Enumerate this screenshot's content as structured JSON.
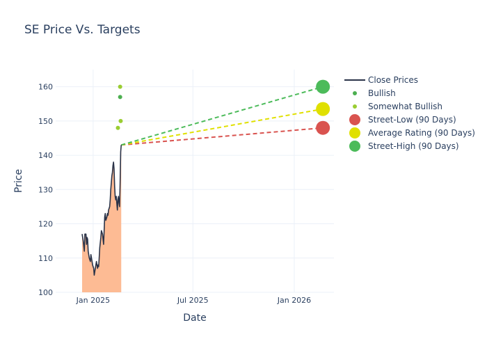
{
  "chart_data": {
    "type": "line",
    "title": "SE Price Vs. Targets",
    "xlabel": "Date",
    "ylabel": "Price",
    "ylim": [
      100,
      165
    ],
    "xlim": [
      "2024-10-25",
      "2026-03-14"
    ],
    "y_ticks": [
      100,
      110,
      120,
      130,
      140,
      150,
      160
    ],
    "x_ticks": [
      {
        "date": "2025-01-01",
        "label": "Jan 2025"
      },
      {
        "date": "2025-07-01",
        "label": "Jul 2025"
      },
      {
        "date": "2026-01-01",
        "label": "Jan 2026"
      }
    ],
    "grid": true,
    "legend_position": "right",
    "colors": {
      "close": "#2a3348",
      "area": "#fdbb94",
      "bullish": "#4caf50",
      "somewhat_bullish": "#9acd32",
      "street_low": "#d9534f",
      "average": "#e0e000",
      "street_high": "#4cbb5a"
    },
    "series": [
      {
        "name": "Close Prices",
        "points": [
          [
            "2024-12-12",
            117
          ],
          [
            "2024-12-14",
            115
          ],
          [
            "2024-12-16",
            112
          ],
          [
            "2024-12-17",
            117
          ],
          [
            "2024-12-19",
            117
          ],
          [
            "2024-12-20",
            114
          ],
          [
            "2024-12-21",
            116
          ],
          [
            "2024-12-22",
            115.5
          ],
          [
            "2024-12-23",
            112
          ],
          [
            "2024-12-25",
            110
          ],
          [
            "2024-12-27",
            109
          ],
          [
            "2024-12-28",
            111
          ],
          [
            "2024-12-29",
            110
          ],
          [
            "2024-12-31",
            108
          ],
          [
            "2025-01-02",
            107
          ],
          [
            "2025-01-03",
            105
          ],
          [
            "2025-01-05",
            107
          ],
          [
            "2025-01-06",
            108
          ],
          [
            "2025-01-07",
            109
          ],
          [
            "2025-01-09",
            107
          ],
          [
            "2025-01-10",
            108
          ],
          [
            "2025-01-11",
            107.5
          ],
          [
            "2025-01-12",
            110
          ],
          [
            "2025-01-13",
            113
          ],
          [
            "2025-01-15",
            116
          ],
          [
            "2025-01-16",
            118
          ],
          [
            "2025-01-18",
            117
          ],
          [
            "2025-01-20",
            114
          ],
          [
            "2025-01-21",
            118
          ],
          [
            "2025-01-22",
            122
          ],
          [
            "2025-01-23",
            123
          ],
          [
            "2025-01-24",
            121
          ],
          [
            "2025-01-26",
            122
          ],
          [
            "2025-01-27",
            123
          ],
          [
            "2025-01-28",
            122.5
          ],
          [
            "2025-01-29",
            124
          ],
          [
            "2025-01-31",
            125
          ],
          [
            "2025-02-01",
            127
          ],
          [
            "2025-02-02",
            130
          ],
          [
            "2025-02-04",
            134
          ],
          [
            "2025-02-05",
            135
          ],
          [
            "2025-02-06",
            137
          ],
          [
            "2025-02-07",
            138
          ],
          [
            "2025-02-08",
            136
          ],
          [
            "2025-02-09",
            131
          ],
          [
            "2025-02-10",
            128
          ],
          [
            "2025-02-11",
            127
          ],
          [
            "2025-02-12",
            128
          ],
          [
            "2025-02-13",
            126
          ],
          [
            "2025-02-14",
            124
          ],
          [
            "2025-02-15",
            127
          ],
          [
            "2025-02-16",
            128
          ],
          [
            "2025-02-17",
            126
          ],
          [
            "2025-02-18",
            125
          ],
          [
            "2025-02-19",
            132
          ],
          [
            "2025-02-20",
            141
          ],
          [
            "2025-02-21",
            143
          ]
        ]
      },
      {
        "name": "Bullish",
        "points": [
          [
            "2025-02-19",
            157
          ]
        ]
      },
      {
        "name": "Somewhat Bullish",
        "points": [
          [
            "2025-02-15",
            148
          ],
          [
            "2025-02-19",
            160
          ],
          [
            "2025-02-20",
            150
          ]
        ]
      },
      {
        "name": "Street-Low (90 Days)",
        "points": [
          [
            "2025-02-21",
            143
          ],
          [
            "2026-02-22",
            148
          ]
        ]
      },
      {
        "name": "Average Rating (90 Days)",
        "points": [
          [
            "2025-02-21",
            143
          ],
          [
            "2026-02-22",
            153.5
          ]
        ]
      },
      {
        "name": "Street-High (90 Days)",
        "points": [
          [
            "2025-02-21",
            143
          ],
          [
            "2026-02-22",
            160
          ]
        ]
      }
    ]
  }
}
